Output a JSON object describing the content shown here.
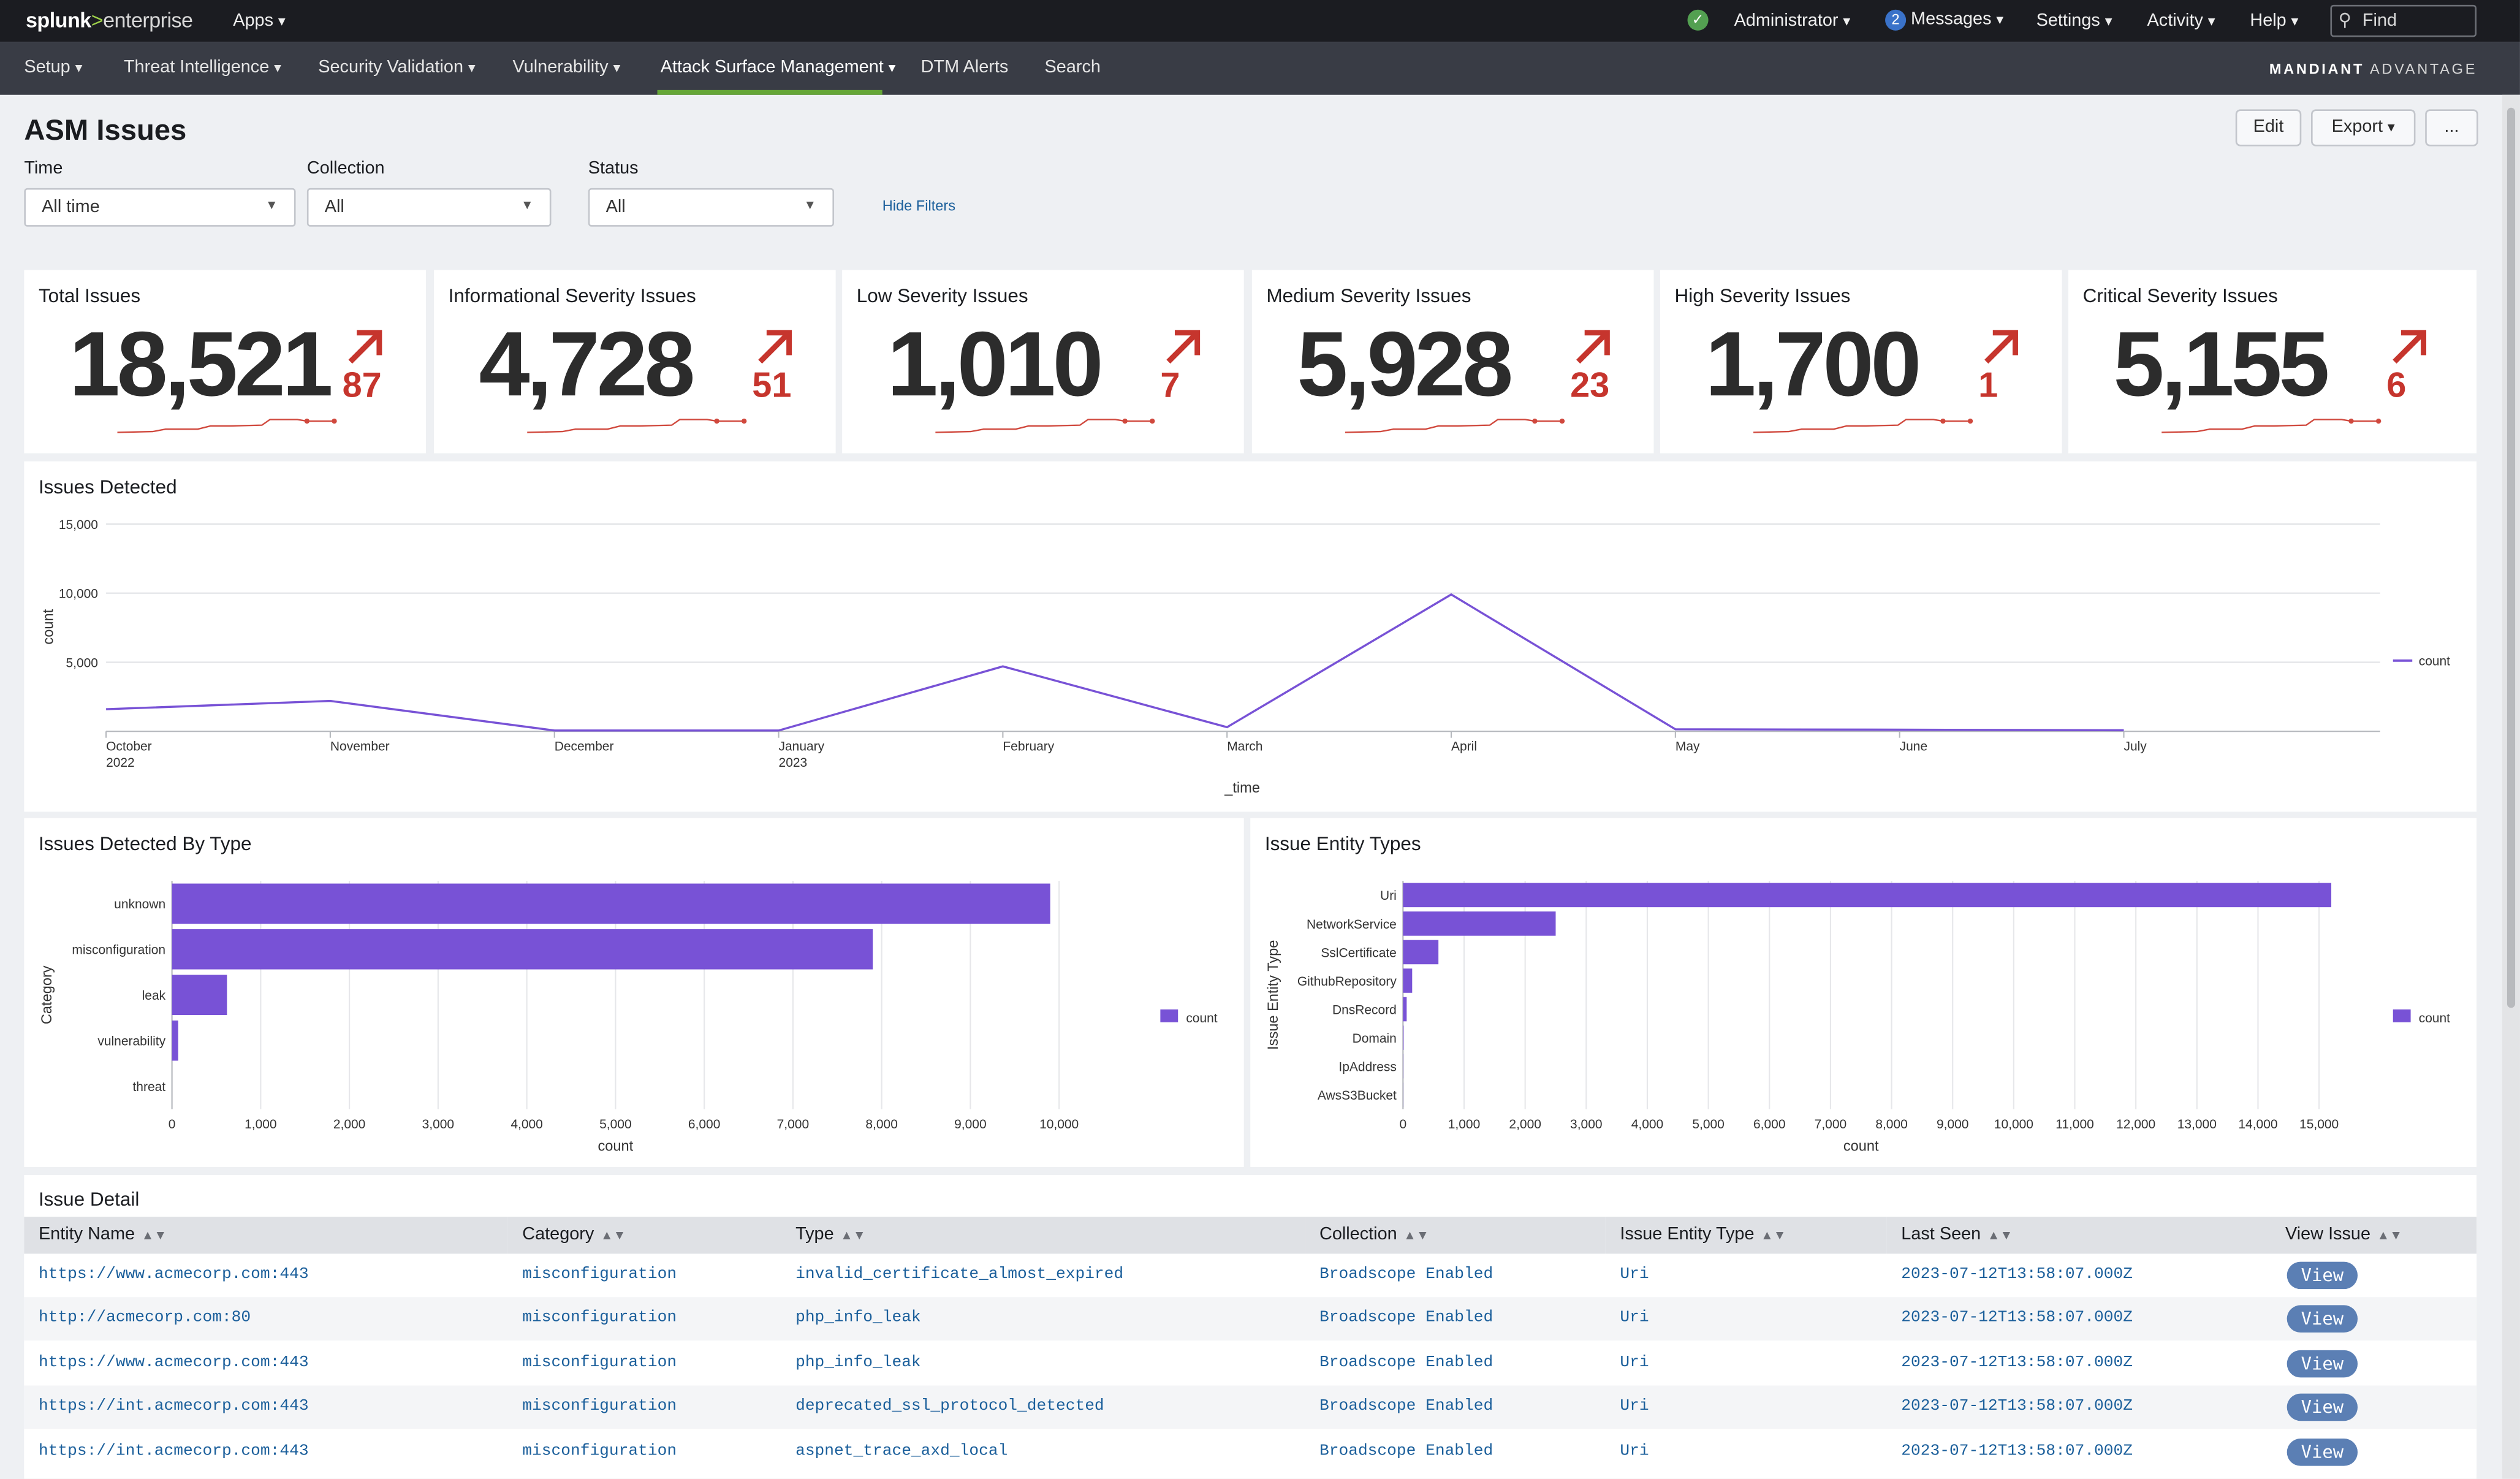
{
  "topbar": {
    "logo": {
      "brand": "splunk",
      "sep": ">",
      "product": "enterprise"
    },
    "apps": "Apps",
    "status_icon": "check-circle-icon",
    "user": "Administrator",
    "messages_count": "2",
    "messages": "Messages",
    "settings": "Settings",
    "activity": "Activity",
    "help": "Help",
    "find_placeholder": "Find"
  },
  "nav": {
    "items": [
      "Setup",
      "Threat Intelligence",
      "Security Validation",
      "Vulnerability",
      "Attack Surface Management",
      "DTM Alerts",
      "Search"
    ],
    "active": "Attack Surface Management",
    "brand_left": "MANDIANT",
    "brand_right": "ADVANTAGE"
  },
  "header": {
    "title": "ASM Issues",
    "edit": "Edit",
    "export": "Export",
    "more": "..."
  },
  "filters": {
    "time": {
      "label": "Time",
      "value": "All time"
    },
    "collection": {
      "label": "Collection",
      "value": "All"
    },
    "status": {
      "label": "Status",
      "value": "All"
    },
    "hide": "Hide Filters"
  },
  "single_values": [
    {
      "title": "Total Issues",
      "value": "18,521",
      "delta": "87"
    },
    {
      "title": "Informational Severity Issues",
      "value": "4,728",
      "delta": "51"
    },
    {
      "title": "Low Severity Issues",
      "value": "1,010",
      "delta": "7"
    },
    {
      "title": "Medium Severity Issues",
      "value": "5,928",
      "delta": "23"
    },
    {
      "title": "High Severity Issues",
      "value": "1,700",
      "delta": "1"
    },
    {
      "title": "Critical Severity Issues",
      "value": "5,155",
      "delta": "6"
    }
  ],
  "colors": {
    "accent": "#7852d6",
    "delta": "#c6352d",
    "link": "#1b5f9b",
    "nav_active": "#65a637"
  },
  "chart_data": [
    {
      "type": "line",
      "title": "Issues Detected",
      "xlabel": "_time",
      "ylabel": "count",
      "x": [
        "October 2022",
        "November",
        "December",
        "January 2023",
        "February",
        "March",
        "April",
        "May",
        "June",
        "July"
      ],
      "x_ticks": [
        [
          "October",
          "2022"
        ],
        [
          "November"
        ],
        [
          "December"
        ],
        [
          "January",
          "2023"
        ],
        [
          "February"
        ],
        [
          "March"
        ],
        [
          "April"
        ],
        [
          "May"
        ],
        [
          "June"
        ],
        [
          "July"
        ]
      ],
      "series": [
        {
          "name": "count",
          "values": [
            1600,
            2200,
            60,
            60,
            4700,
            300,
            9900,
            150,
            120,
            80
          ]
        }
      ],
      "ylim": [
        0,
        15000
      ],
      "y_ticks": [
        5000,
        10000,
        15000
      ],
      "y_tick_labels": [
        "5,000",
        "10,000",
        "15,000"
      ],
      "legend": "right",
      "grid": "horizontal"
    },
    {
      "type": "bar",
      "orientation": "horizontal",
      "title": "Issues Detected By Type",
      "xlabel": "count",
      "ylabel": "Category",
      "categories": [
        "unknown",
        "misconfiguration",
        "leak",
        "vulnerability",
        "threat"
      ],
      "series": [
        {
          "name": "count",
          "values": [
            9900,
            7900,
            620,
            70,
            0
          ]
        }
      ],
      "xlim": [
        0,
        10000
      ],
      "x_ticks": [
        0,
        1000,
        2000,
        3000,
        4000,
        5000,
        6000,
        7000,
        8000,
        9000,
        10000
      ],
      "x_tick_labels": [
        "0",
        "1,000",
        "2,000",
        "3,000",
        "4,000",
        "5,000",
        "6,000",
        "7,000",
        "8,000",
        "9,000",
        "10,000"
      ],
      "legend": "right"
    },
    {
      "type": "bar",
      "orientation": "horizontal",
      "title": "Issue Entity Types",
      "xlabel": "count",
      "ylabel": "Issue Entity Type",
      "categories": [
        "Uri",
        "NetworkService",
        "SslCertificate",
        "GithubRepository",
        "DnsRecord",
        "Domain",
        "IpAddress",
        "AwsS3Bucket"
      ],
      "series": [
        {
          "name": "count",
          "values": [
            15200,
            2500,
            580,
            150,
            60,
            10,
            5,
            3
          ]
        }
      ],
      "xlim": [
        0,
        15000
      ],
      "x_ticks": [
        0,
        1000,
        2000,
        3000,
        4000,
        5000,
        6000,
        7000,
        8000,
        9000,
        10000,
        11000,
        12000,
        13000,
        14000,
        15000
      ],
      "x_tick_labels": [
        "0",
        "1,000",
        "2,000",
        "3,000",
        "4,000",
        "5,000",
        "6,000",
        "7,000",
        "8,000",
        "9,000",
        "10,000",
        "11,000",
        "12,000",
        "13,000",
        "14,000",
        "15,000"
      ],
      "legend": "right"
    }
  ],
  "table": {
    "title": "Issue Detail",
    "columns": [
      "Entity Name",
      "Category",
      "Type",
      "Collection",
      "Issue Entity Type",
      "Last Seen",
      "View Issue"
    ],
    "rows": [
      {
        "entity": "https://www.acmecorp.com:443",
        "category": "misconfiguration",
        "type": "invalid_certificate_almost_expired",
        "collection": "Broadscope Enabled",
        "entity_type": "Uri",
        "last_seen": "2023-07-12T13:58:07.000Z",
        "view": "View"
      },
      {
        "entity": "http://acmecorp.com:80",
        "category": "misconfiguration",
        "type": "php_info_leak",
        "collection": "Broadscope Enabled",
        "entity_type": "Uri",
        "last_seen": "2023-07-12T13:58:07.000Z",
        "view": "View"
      },
      {
        "entity": "https://www.acmecorp.com:443",
        "category": "misconfiguration",
        "type": "php_info_leak",
        "collection": "Broadscope Enabled",
        "entity_type": "Uri",
        "last_seen": "2023-07-12T13:58:07.000Z",
        "view": "View"
      },
      {
        "entity": "https://int.acmecorp.com:443",
        "category": "misconfiguration",
        "type": "deprecated_ssl_protocol_detected",
        "collection": "Broadscope Enabled",
        "entity_type": "Uri",
        "last_seen": "2023-07-12T13:58:07.000Z",
        "view": "View"
      },
      {
        "entity": "https://int.acmecorp.com:443",
        "category": "misconfiguration",
        "type": "aspnet_trace_axd_local",
        "collection": "Broadscope Enabled",
        "entity_type": "Uri",
        "last_seen": "2023-07-12T13:58:07.000Z",
        "view": "View"
      }
    ]
  }
}
